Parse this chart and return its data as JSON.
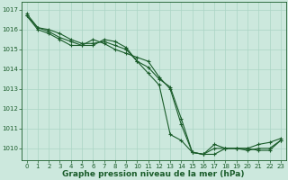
{
  "title": "Graphe pression niveau de la mer (hPa)",
  "bg_color": "#cce8dd",
  "grid_color": "#aad4c4",
  "line_color": "#1a5c2a",
  "xlim": [
    -0.5,
    23.5
  ],
  "ylim": [
    1009.4,
    1017.4
  ],
  "yticks": [
    1010,
    1011,
    1012,
    1013,
    1014,
    1015,
    1016,
    1017
  ],
  "xticks": [
    0,
    1,
    2,
    3,
    4,
    5,
    6,
    7,
    8,
    9,
    10,
    11,
    12,
    13,
    14,
    15,
    16,
    17,
    18,
    19,
    20,
    21,
    22,
    23
  ],
  "series": [
    [
      1016.7,
      1016.1,
      1016.0,
      1015.8,
      1015.5,
      1015.3,
      1015.3,
      1015.4,
      1015.2,
      1015.0,
      1014.4,
      1014.1,
      1013.5,
      1013.1,
      1011.5,
      1009.8,
      1009.7,
      1010.2,
      1010.0,
      1010.0,
      1009.9,
      1010.0,
      1010.0,
      1010.4
    ],
    [
      1016.7,
      1016.0,
      1015.8,
      1015.5,
      1015.2,
      1015.2,
      1015.5,
      1015.3,
      1015.0,
      1014.8,
      1014.6,
      1014.4,
      1013.6,
      1013.0,
      1011.2,
      1009.8,
      1009.7,
      1010.0,
      1010.0,
      1010.0,
      1010.0,
      1010.2,
      1010.3,
      1010.5
    ],
    [
      1016.8,
      1016.1,
      1015.9,
      1015.6,
      1015.4,
      1015.2,
      1015.2,
      1015.5,
      1015.4,
      1015.1,
      1014.4,
      1013.8,
      1013.2,
      1010.7,
      1010.4,
      1009.8,
      1009.7,
      1009.7,
      1010.0,
      1010.0,
      1010.0,
      1009.9,
      1009.9,
      1010.4
    ]
  ],
  "tick_fontsize": 5.0,
  "xlabel_fontsize": 6.5,
  "linewidth": 0.8,
  "markersize": 2.5
}
